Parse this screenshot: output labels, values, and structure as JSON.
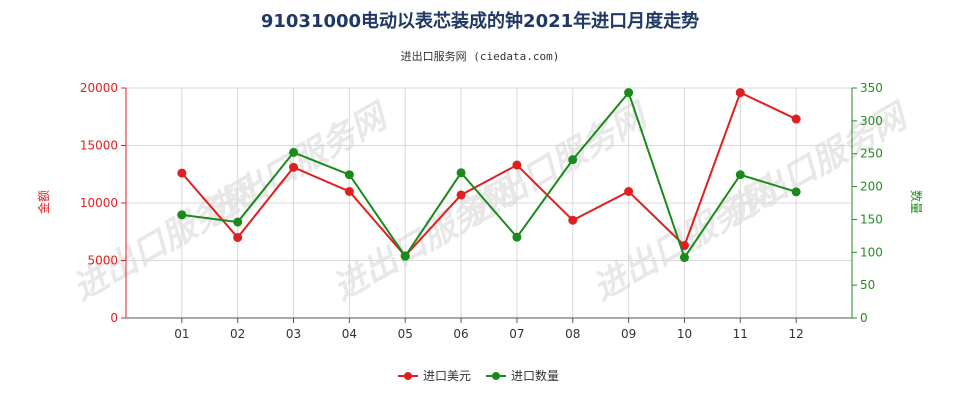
{
  "chart_data": {
    "type": "line",
    "title": "91031000电动以表芯装成的钟2021年进口月度走势",
    "subtitle": "进出口服务网 (ciedata.com)",
    "categories": [
      "01",
      "02",
      "03",
      "04",
      "05",
      "06",
      "07",
      "08",
      "09",
      "10",
      "11",
      "12"
    ],
    "y_left": {
      "label": "金额",
      "range": [
        0,
        20000
      ],
      "ticks": [
        0,
        5000,
        10000,
        15000,
        20000
      ]
    },
    "y_right": {
      "label": "数量",
      "range": [
        0,
        350
      ],
      "ticks": [
        0,
        50,
        100,
        150,
        200,
        250,
        300,
        350
      ]
    },
    "grid": true,
    "legend_position": "bottom",
    "series": [
      {
        "name": "进口美元",
        "axis": "left",
        "color": "#e02020",
        "values": [
          12600,
          7000,
          13100,
          11000,
          5400,
          10700,
          13300,
          8500,
          11000,
          6300,
          19600,
          17300
        ]
      },
      {
        "name": "进口数量",
        "axis": "right",
        "color": "#1a8a1a",
        "values": [
          157,
          146,
          252,
          218,
          94,
          221,
          123,
          241,
          343,
          92,
          218,
          192
        ]
      }
    ],
    "watermark": "进出口服务网"
  }
}
